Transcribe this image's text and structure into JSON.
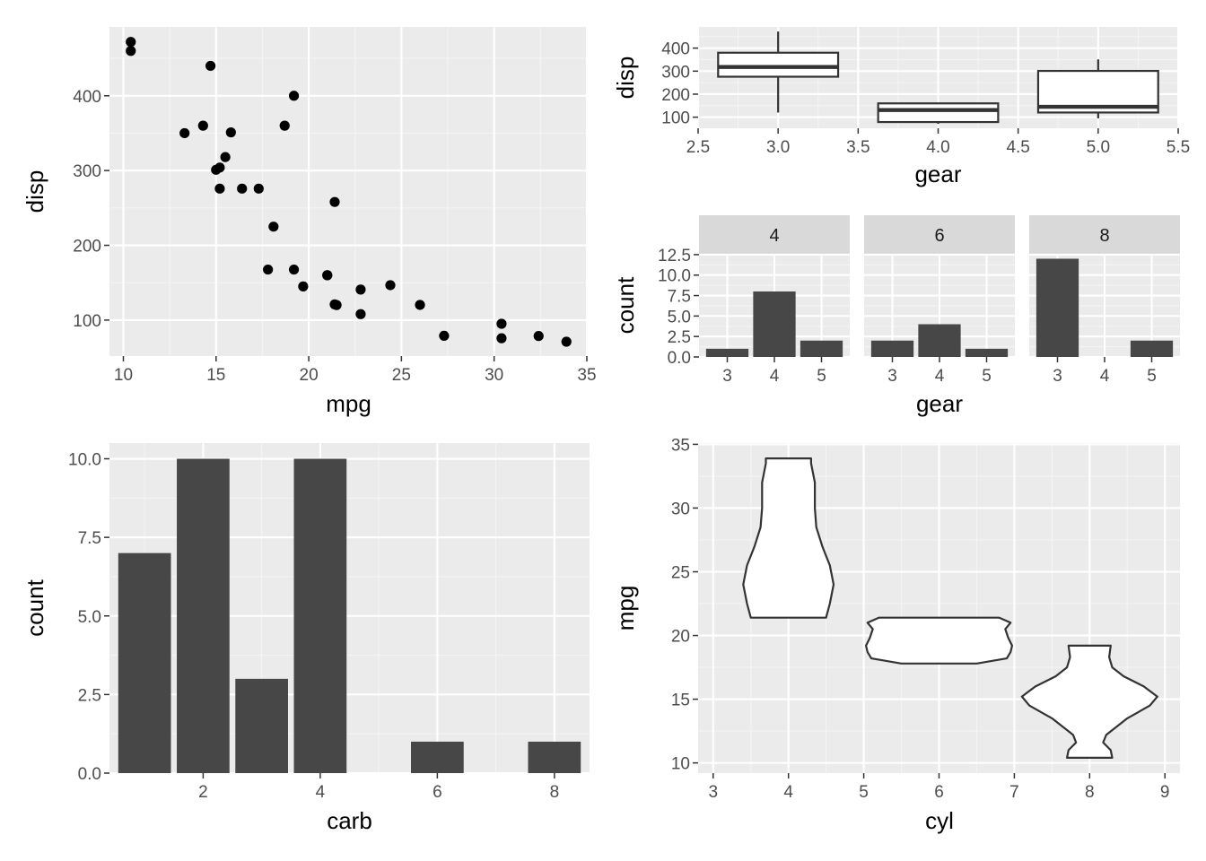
{
  "colors": {
    "panel_bg": "#ebebeb",
    "grid_major": "#ffffff",
    "grid_minor": "#f4f4f4",
    "bar_fill": "#474747",
    "point": "#000000",
    "box_fill": "#ffffff",
    "outline": "#333333",
    "strip_bg": "#d9d9d9",
    "tick_text": "#4d4d4d"
  },
  "chart_data": [
    {
      "type": "scatter",
      "xlabel": "mpg",
      "ylabel": "disp",
      "xlim": [
        9.25,
        35.05
      ],
      "ylim": [
        51.9,
        492.1
      ],
      "xticks": [
        "10",
        "15",
        "20",
        "25",
        "30",
        "35"
      ],
      "yticks": [
        "100",
        "200",
        "300",
        "400"
      ],
      "points": [
        [
          21.0,
          160
        ],
        [
          21.0,
          160
        ],
        [
          22.8,
          108
        ],
        [
          21.4,
          258
        ],
        [
          18.7,
          360
        ],
        [
          18.1,
          225
        ],
        [
          14.3,
          360
        ],
        [
          24.4,
          146.7
        ],
        [
          22.8,
          140.8
        ],
        [
          19.2,
          167.6
        ],
        [
          17.8,
          167.6
        ],
        [
          16.4,
          275.8
        ],
        [
          17.3,
          275.8
        ],
        [
          15.2,
          275.8
        ],
        [
          10.4,
          472
        ],
        [
          10.4,
          460
        ],
        [
          14.7,
          440
        ],
        [
          32.4,
          78.7
        ],
        [
          30.4,
          75.7
        ],
        [
          33.9,
          71.1
        ],
        [
          21.5,
          120.1
        ],
        [
          15.5,
          318
        ],
        [
          15.2,
          304
        ],
        [
          13.3,
          350
        ],
        [
          19.2,
          400
        ],
        [
          27.3,
          79
        ],
        [
          26.0,
          120.3
        ],
        [
          30.4,
          95.1
        ],
        [
          15.8,
          351
        ],
        [
          19.7,
          145
        ],
        [
          15.0,
          301
        ],
        [
          21.4,
          121
        ]
      ]
    },
    {
      "type": "box",
      "xlabel": "gear",
      "ylabel": "disp",
      "xlim": [
        2.5,
        5.5
      ],
      "ylim": [
        51.9,
        492.1
      ],
      "xticks": [
        "2.5",
        "3.0",
        "3.5",
        "4.0",
        "4.5",
        "5.0",
        "5.5"
      ],
      "yticks": [
        "100",
        "200",
        "300",
        "400"
      ],
      "boxes": [
        {
          "x": 3,
          "min": 120.1,
          "q1": 275.8,
          "median": 318,
          "q3": 380,
          "max": 472
        },
        {
          "x": 4,
          "min": 71.1,
          "q1": 78.9,
          "median": 130.9,
          "q3": 160,
          "max": 160
        },
        {
          "x": 5,
          "min": 95.1,
          "q1": 120.3,
          "median": 145,
          "q3": 301,
          "max": 351
        }
      ]
    },
    {
      "type": "bar",
      "facet_var": "cyl",
      "xlabel": "gear",
      "ylabel": "count",
      "ylim": [
        0,
        12.6
      ],
      "yticks": [
        "0.0",
        "2.5",
        "5.0",
        "7.5",
        "10.0",
        "12.5"
      ],
      "categories": [
        "3",
        "4",
        "5"
      ],
      "facets": [
        {
          "label": "4",
          "values": [
            1,
            8,
            2
          ]
        },
        {
          "label": "6",
          "values": [
            2,
            4,
            1
          ]
        },
        {
          "label": "8",
          "values": [
            12,
            0,
            2
          ]
        }
      ]
    },
    {
      "type": "bar",
      "xlabel": "carb",
      "ylabel": "count",
      "xlim": [
        0.4,
        8.6
      ],
      "ylim": [
        0,
        10.5
      ],
      "xticks": [
        "2",
        "4",
        "6",
        "8"
      ],
      "yticks": [
        "0.0",
        "2.5",
        "5.0",
        "7.5",
        "10.0"
      ],
      "categories": [
        1,
        2,
        3,
        4,
        6,
        8
      ],
      "values": [
        7,
        10,
        3,
        10,
        1,
        1
      ]
    },
    {
      "type": "violin",
      "xlabel": "cyl",
      "ylabel": "mpg",
      "xlim": [
        2.8,
        9.2
      ],
      "ylim": [
        9.2,
        35.1
      ],
      "xticks": [
        "3",
        "4",
        "5",
        "6",
        "7",
        "8",
        "9"
      ],
      "yticks": [
        "10",
        "15",
        "20",
        "25",
        "30",
        "35"
      ],
      "violins": [
        {
          "x": 4,
          "profile": [
            [
              21.4,
              0.5
            ],
            [
              22.5,
              0.55
            ],
            [
              24.0,
              0.6
            ],
            [
              25.5,
              0.55
            ],
            [
              27.0,
              0.45
            ],
            [
              28.5,
              0.37
            ],
            [
              30.0,
              0.35
            ],
            [
              32.0,
              0.35
            ],
            [
              33.5,
              0.3
            ],
            [
              33.9,
              0.3
            ]
          ]
        },
        {
          "x": 6,
          "profile": [
            [
              17.8,
              0.5
            ],
            [
              18.2,
              0.9
            ],
            [
              18.7,
              0.95
            ],
            [
              19.2,
              0.97
            ],
            [
              19.8,
              0.92
            ],
            [
              20.5,
              0.88
            ],
            [
              21.0,
              0.95
            ],
            [
              21.4,
              0.8
            ]
          ]
        },
        {
          "x": 8,
          "profile": [
            [
              10.4,
              0.3
            ],
            [
              11.0,
              0.28
            ],
            [
              11.6,
              0.18
            ],
            [
              12.2,
              0.22
            ],
            [
              13.5,
              0.5
            ],
            [
              14.5,
              0.8
            ],
            [
              15.2,
              0.9
            ],
            [
              16.0,
              0.72
            ],
            [
              16.8,
              0.45
            ],
            [
              17.5,
              0.3
            ],
            [
              18.3,
              0.26
            ],
            [
              19.2,
              0.28
            ]
          ]
        }
      ]
    }
  ]
}
